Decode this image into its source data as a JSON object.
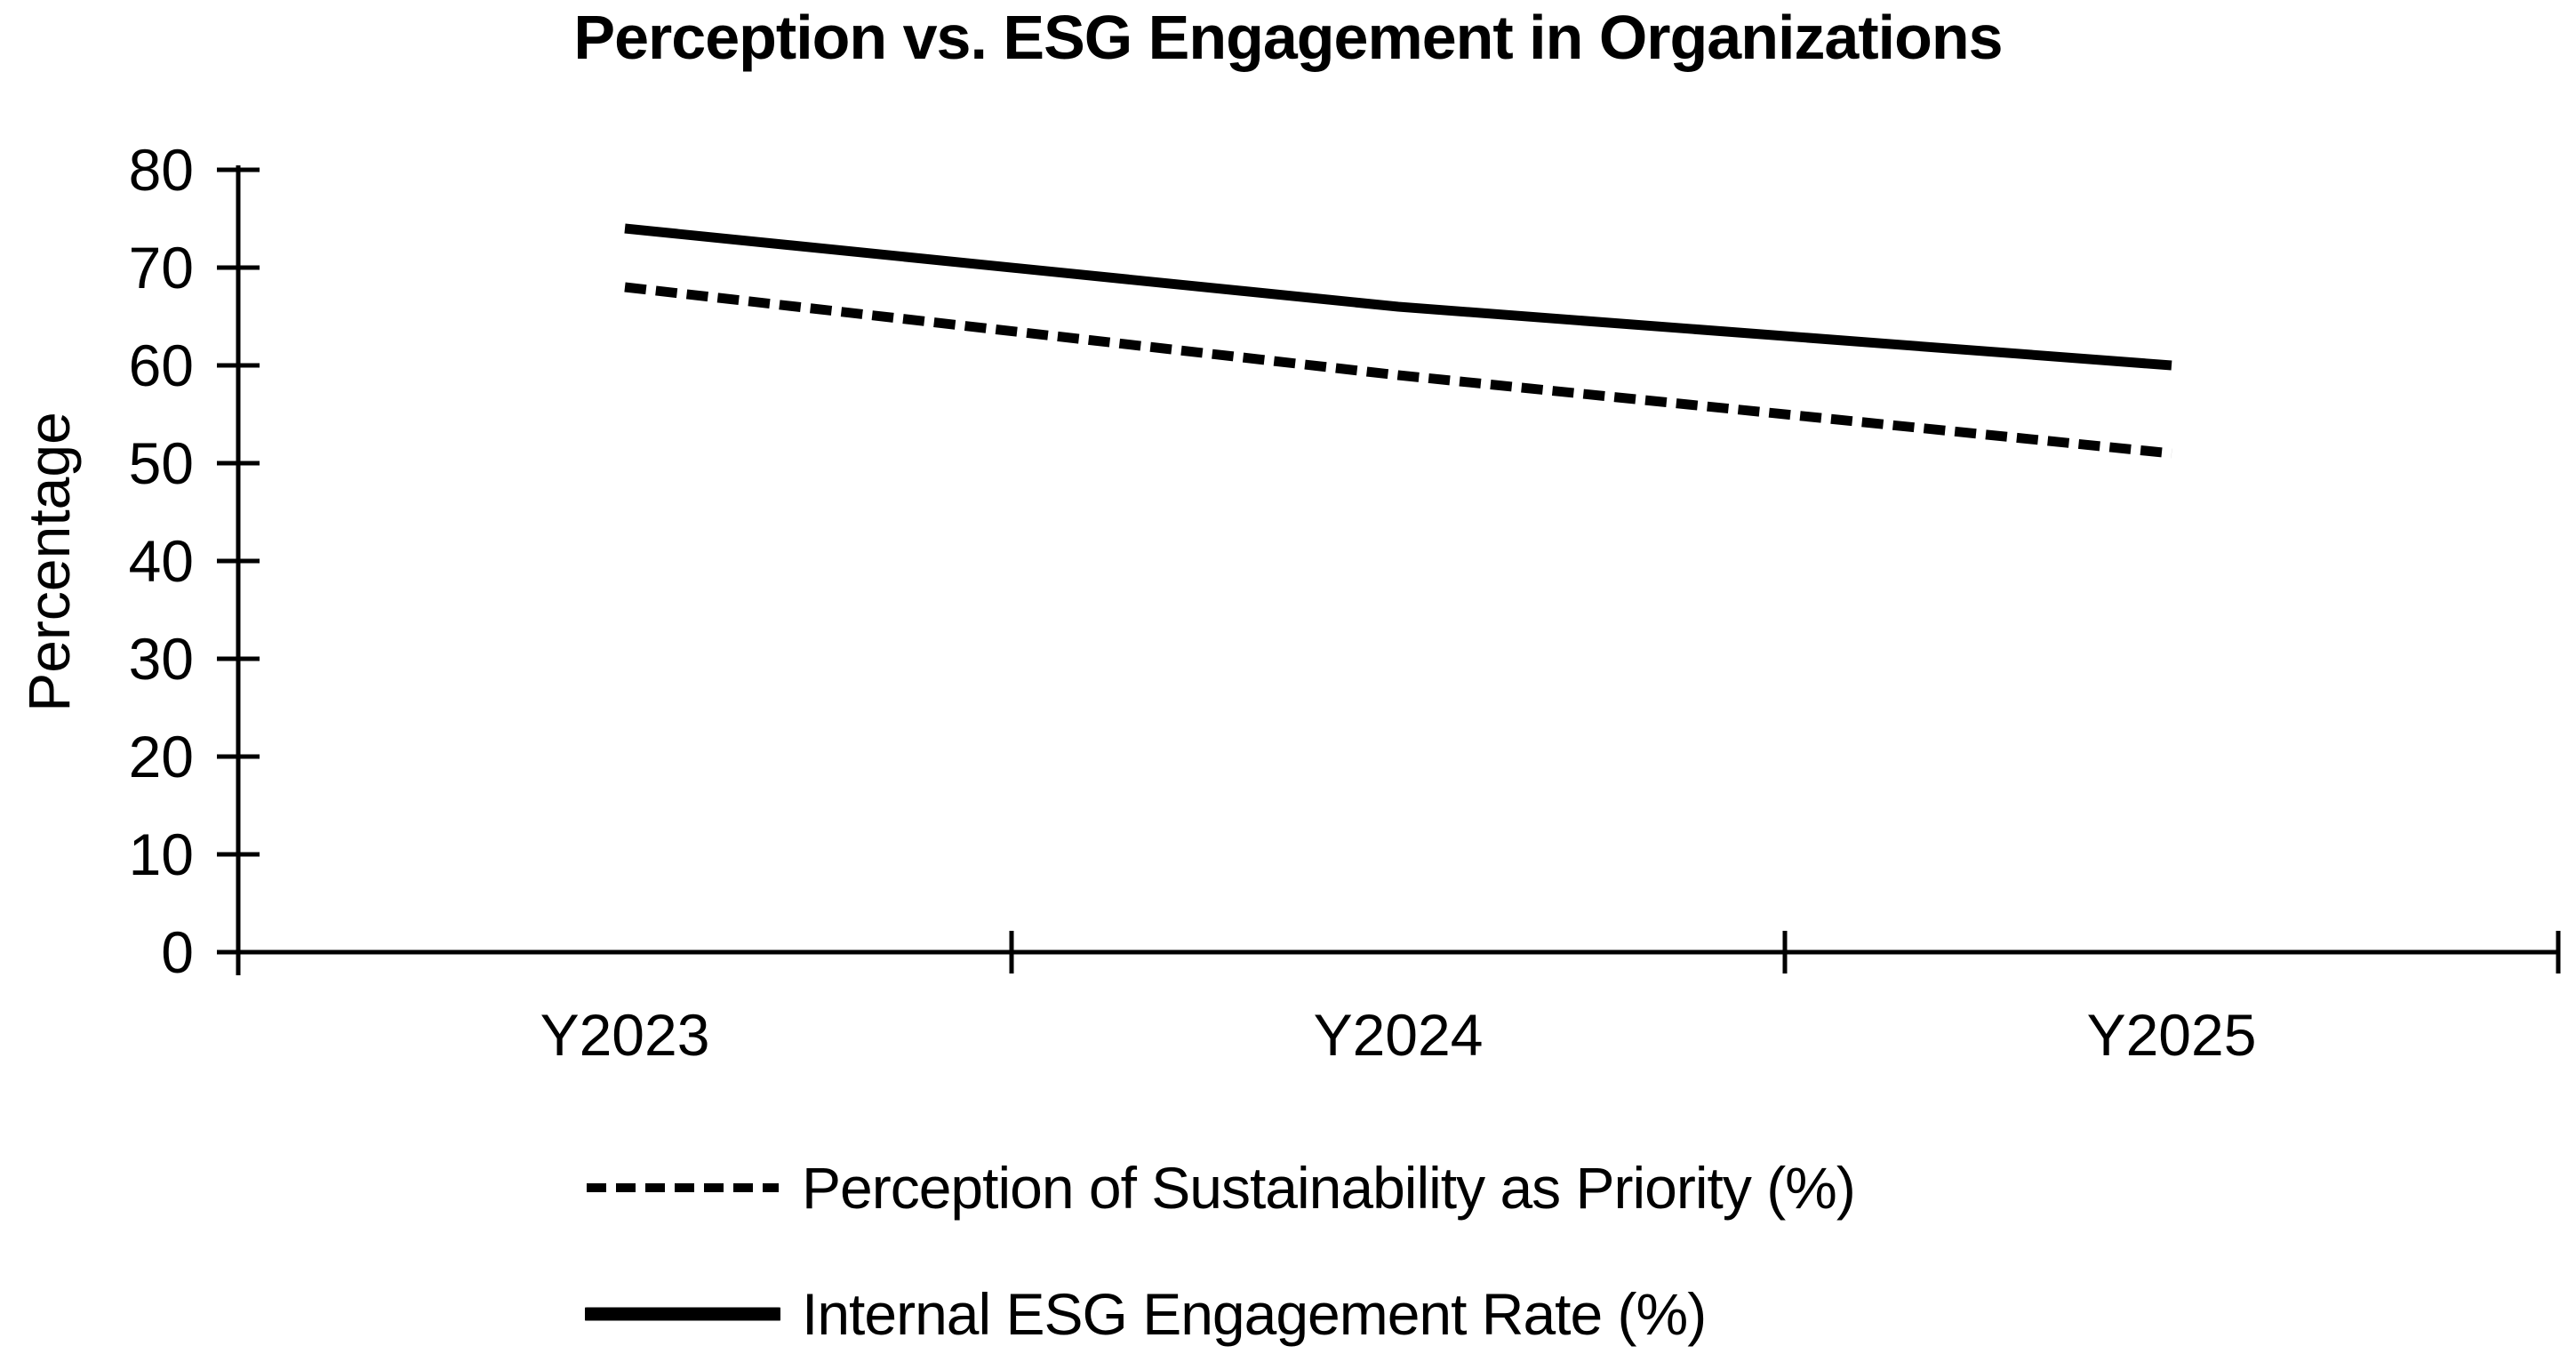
{
  "chart_data": {
    "type": "line",
    "title": "Perception vs. ESG Engagement in Organizations",
    "xlabel": "",
    "ylabel": "Percentage",
    "categories": [
      "Y2023",
      "Y2024",
      "Y2025"
    ],
    "yticks": [
      0,
      10,
      20,
      30,
      40,
      50,
      60,
      70,
      80
    ],
    "ylim": [
      0,
      80
    ],
    "grid": false,
    "legend_position": "bottom-left",
    "series": [
      {
        "name": "Perception of Sustainability as Priority (%)",
        "values": [
          68,
          59,
          51
        ],
        "line_style": "dashed",
        "color": "#000000"
      },
      {
        "name": "Internal ESG Engagement Rate (%)",
        "values": [
          74,
          66,
          60
        ],
        "line_style": "solid",
        "color": "#000000"
      }
    ]
  },
  "colors": {
    "background": "#ffffff",
    "axis": "#000000",
    "text": "#000000"
  }
}
